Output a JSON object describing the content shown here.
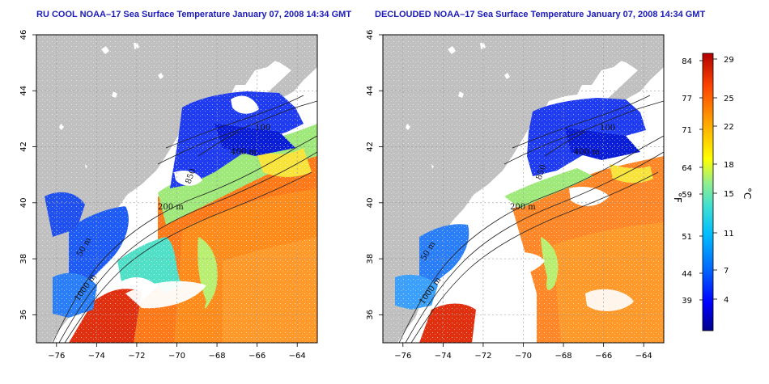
{
  "panels": [
    {
      "title": "RU COOL NOAA–17 Sea Surface Temperature January 07, 2008 14:34 GMT",
      "contour_labels": [
        "100",
        "400 m",
        "850",
        "200 m",
        "50 m",
        "1000 m"
      ]
    },
    {
      "title": "DECLOUDED NOAA–17 Sea Surface Temperature January 07, 2008 14:34 GMT",
      "contour_labels": [
        "100",
        "400 m",
        "850",
        "200 m",
        "50 m",
        "1000 m"
      ]
    }
  ],
  "axes": {
    "x_ticks": [
      "−76",
      "−74",
      "−72",
      "−70",
      "−68",
      "−66",
      "−64"
    ],
    "y_ticks": [
      "46",
      "44",
      "42",
      "40",
      "38",
      "36"
    ]
  },
  "colorbar": {
    "fahrenheit_ticks": [
      "84",
      "77",
      "71",
      "64",
      "59",
      "51",
      "44",
      "39"
    ],
    "celsius_ticks": [
      "29",
      "25",
      "22",
      "18",
      "15",
      "11",
      "7",
      "4"
    ],
    "left_unit": "°F",
    "right_unit": "°C",
    "colors": [
      "#00008b",
      "#0000ff",
      "#0066ff",
      "#00bfff",
      "#40e0d0",
      "#90ee90",
      "#ffff00",
      "#ffa500",
      "#ff4500",
      "#b20000"
    ]
  },
  "colors": {
    "land": "#c0c0c0",
    "ocean_no_data": "#ffffff",
    "title": "#1a1ab8"
  }
}
